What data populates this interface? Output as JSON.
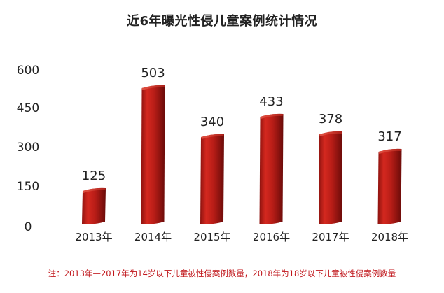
{
  "chart_data": {
    "type": "bar",
    "title": "近6年曝光性侵儿童案例统计情况",
    "categories": [
      "2013年",
      "2014年",
      "2015年",
      "2016年",
      "2017年",
      "2018年"
    ],
    "values": [
      125,
      503,
      340,
      433,
      378,
      317
    ],
    "data_labels": [
      "125",
      "503",
      "340",
      "433",
      "378",
      "317"
    ],
    "yticks": [
      0,
      150,
      300,
      450,
      600
    ],
    "ylim": [
      0,
      600
    ],
    "grid": false,
    "legend": "none",
    "bar_color": "#c0201c",
    "bar_color_dark": "#7e0f0d",
    "bar_color_light": "#e44a3c"
  },
  "footnote": "注：2013年—2017年为14岁以下儿童被性侵案例数量，2018年为18岁以下儿童被性侵案例数量",
  "colors": {
    "footnote": "#c0161b",
    "axis_text": "#222222"
  }
}
